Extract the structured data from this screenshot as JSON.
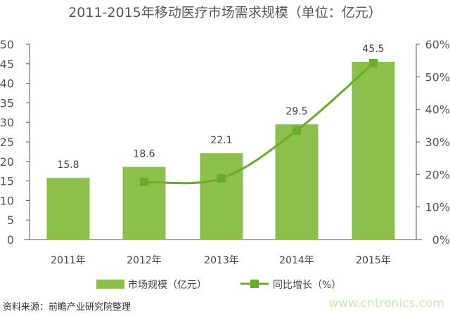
{
  "chart_data": {
    "type": "bar",
    "title": "2011-2015年移动医疗市场需求规模（单位：亿元）",
    "categories": [
      "2011年",
      "2012年",
      "2013年",
      "2014年",
      "2015年"
    ],
    "series": [
      {
        "name": "市场规模（亿元）",
        "type": "bar",
        "axis": "left",
        "values": [
          15.8,
          18.6,
          22.1,
          29.5,
          45.5
        ],
        "labels": [
          "15.8",
          "18.6",
          "22.1",
          "29.5",
          "45.5"
        ],
        "color": "#8dc04a"
      },
      {
        "name": "同比增长（%）",
        "type": "line",
        "axis": "right",
        "values": [
          null,
          17.7,
          18.8,
          33.5,
          54.2
        ],
        "color": "#6aab2a"
      }
    ],
    "ylim": [
      0,
      50
    ],
    "yticks": [
      "0",
      "5",
      "10",
      "15",
      "20",
      "25",
      "30",
      "35",
      "40",
      "45",
      "50"
    ],
    "y2lim": [
      0,
      60
    ],
    "y2ticks": [
      "0%",
      "10%",
      "20%",
      "30%",
      "40%",
      "50%",
      "60%"
    ],
    "legend": "bottom",
    "grid": false
  },
  "source": "资料来源：前瞻产业研究院整理",
  "watermark": "www.cntronics.com"
}
